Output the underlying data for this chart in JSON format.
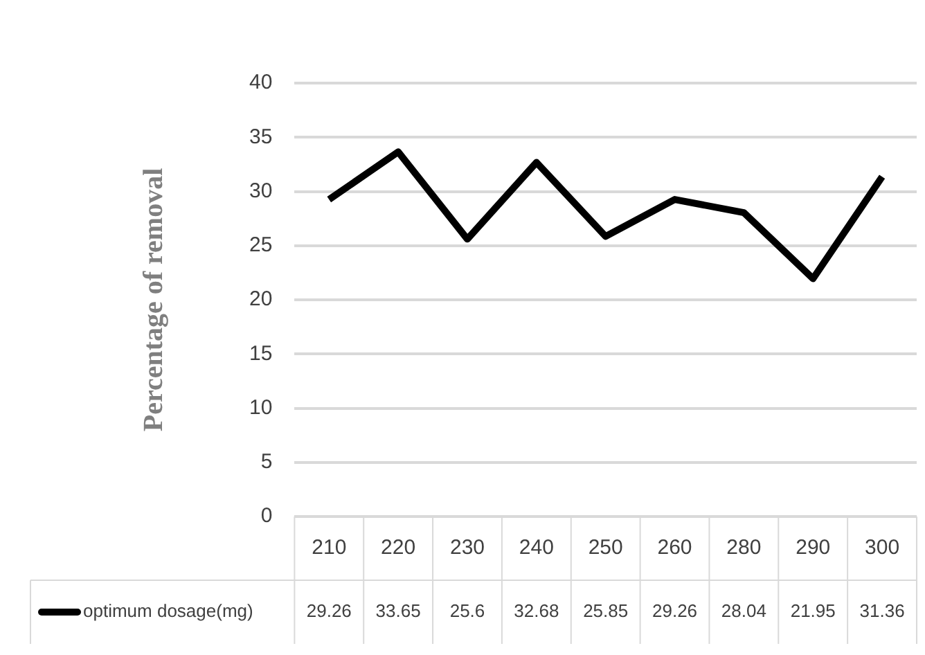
{
  "chart_data": {
    "type": "line",
    "ylabel": "Percentage of removal",
    "categories": [
      "210",
      "220",
      "230",
      "240",
      "250",
      "260",
      "280",
      "290",
      "300"
    ],
    "series": [
      {
        "name": "optimum dosage(mg)",
        "color": "#000000",
        "values": [
          29.26,
          33.65,
          25.6,
          32.68,
          25.85,
          29.26,
          28.04,
          21.95,
          31.36
        ]
      }
    ],
    "ylim": [
      0,
      40
    ],
    "yticks": [
      0,
      5,
      10,
      15,
      20,
      25,
      30,
      35,
      40
    ],
    "grid": "y",
    "marker": "none",
    "line_style": "solid",
    "data_labels": true,
    "legend": "bottom"
  }
}
